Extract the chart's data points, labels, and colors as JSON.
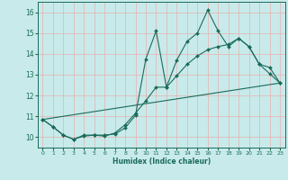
{
  "xlabel": "Humidex (Indice chaleur)",
  "xlim": [
    -0.5,
    23.5
  ],
  "ylim": [
    9.5,
    16.5
  ],
  "yticks": [
    10,
    11,
    12,
    13,
    14,
    15,
    16
  ],
  "xticks": [
    0,
    1,
    2,
    3,
    4,
    5,
    6,
    7,
    8,
    9,
    10,
    11,
    12,
    13,
    14,
    15,
    16,
    17,
    18,
    19,
    20,
    21,
    22,
    23
  ],
  "bg_color": "#c8eaea",
  "grid_color": "#e8b0b0",
  "line_color": "#1a6b5a",
  "line1_x": [
    0,
    1,
    2,
    3,
    4,
    5,
    6,
    7,
    8,
    9,
    10,
    11,
    12,
    13,
    14,
    15,
    16,
    17,
    18,
    19,
    20,
    21,
    22,
    23
  ],
  "line1_y": [
    10.85,
    10.5,
    10.1,
    9.9,
    10.1,
    10.1,
    10.1,
    10.15,
    10.45,
    11.05,
    13.75,
    15.1,
    12.4,
    13.7,
    14.6,
    15.0,
    16.1,
    15.1,
    14.35,
    14.75,
    14.35,
    13.5,
    13.35,
    12.6
  ],
  "line2_x": [
    0,
    1,
    2,
    3,
    4,
    5,
    6,
    7,
    8,
    9,
    10,
    11,
    12,
    13,
    14,
    15,
    16,
    17,
    18,
    19,
    20,
    21,
    22,
    23
  ],
  "line2_y": [
    10.85,
    10.5,
    10.1,
    9.9,
    10.05,
    10.1,
    10.05,
    10.2,
    10.6,
    11.15,
    11.75,
    12.4,
    12.4,
    12.95,
    13.5,
    13.9,
    14.2,
    14.35,
    14.45,
    14.75,
    14.35,
    13.5,
    13.05,
    12.6
  ],
  "line3_x": [
    0,
    23
  ],
  "line3_y": [
    10.85,
    12.6
  ]
}
